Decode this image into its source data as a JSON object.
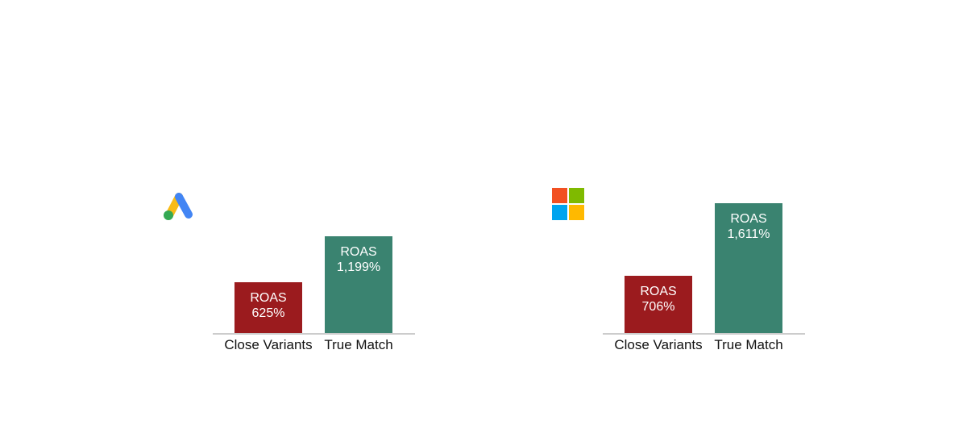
{
  "colors": {
    "close_variants": "#9b1b1e",
    "true_match": "#3a8370",
    "baseline": "#cccccc",
    "text": "#111111"
  },
  "chart_data": [
    {
      "type": "bar",
      "logo": "google-ads-logo",
      "categories": [
        "Close Variants",
        "True Match"
      ],
      "values": [
        625,
        1199
      ],
      "value_unit": "%",
      "value_labels": [
        {
          "line1": "ROAS",
          "line2": "625%"
        },
        {
          "line1": "ROAS",
          "line2": "1,199%"
        }
      ],
      "ylim": [
        0,
        1700
      ],
      "grid": false
    },
    {
      "type": "bar",
      "logo": "microsoft-logo",
      "categories": [
        "Close Variants",
        "True Match"
      ],
      "values": [
        706,
        1611
      ],
      "value_unit": "%",
      "value_labels": [
        {
          "line1": "ROAS",
          "line2": "706%"
        },
        {
          "line1": "ROAS",
          "line2": "1,611%"
        }
      ],
      "ylim": [
        0,
        1700
      ],
      "grid": false
    }
  ]
}
